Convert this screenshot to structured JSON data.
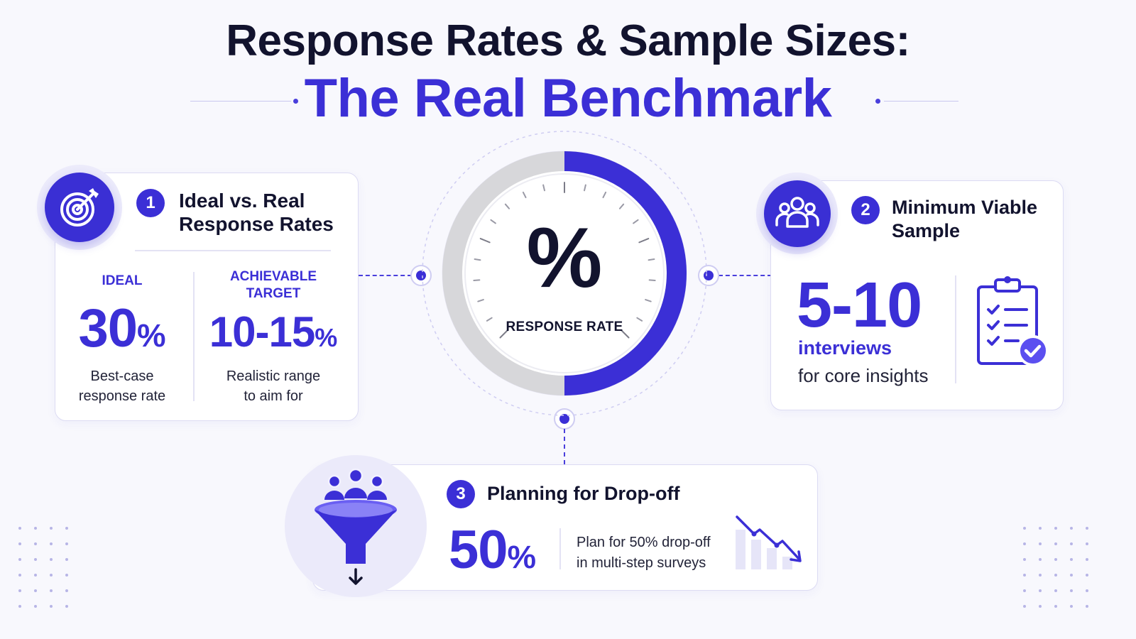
{
  "header": {
    "title_line1": "Response Rates & Sample Sizes:",
    "title_line2": "The Real Benchmark"
  },
  "gauge": {
    "symbol": "%",
    "label": "RESPONSE RATE",
    "fill_fraction": 0.5
  },
  "card_rates": {
    "number": "1",
    "title_line1": "Ideal vs. Real",
    "title_line2": "Response Rates",
    "icon": "target-icon",
    "ideal": {
      "label": "IDEAL",
      "value": "30",
      "unit": "%",
      "desc_line1": "Best-case",
      "desc_line2": "response rate"
    },
    "achievable": {
      "label_line1": "ACHIEVABLE",
      "label_line2": "TARGET",
      "value": "10-15",
      "unit": "%",
      "desc_line1": "Realistic range",
      "desc_line2": "to aim for"
    }
  },
  "card_sample": {
    "number": "2",
    "title_line1": "Minimum Viable",
    "title_line2": "Sample",
    "icon": "users-icon",
    "value": "5-10",
    "unit_label": "interviews",
    "desc": "for core insights",
    "side_icon": "clipboard-check-icon"
  },
  "card_dropoff": {
    "number": "3",
    "title": "Planning for Drop-off",
    "icon": "funnel-icon",
    "value": "50",
    "unit": "%",
    "desc_line1": "Plan for 50% drop-off",
    "desc_line2": "in multi-step surveys",
    "side_icon": "declining-chart-icon"
  },
  "colors": {
    "accent": "#3b2fd6",
    "dark_text": "#12132e",
    "background": "#f8f8fd",
    "card_border": "#dcdbf3",
    "gauge_track": "#d7d7da"
  }
}
